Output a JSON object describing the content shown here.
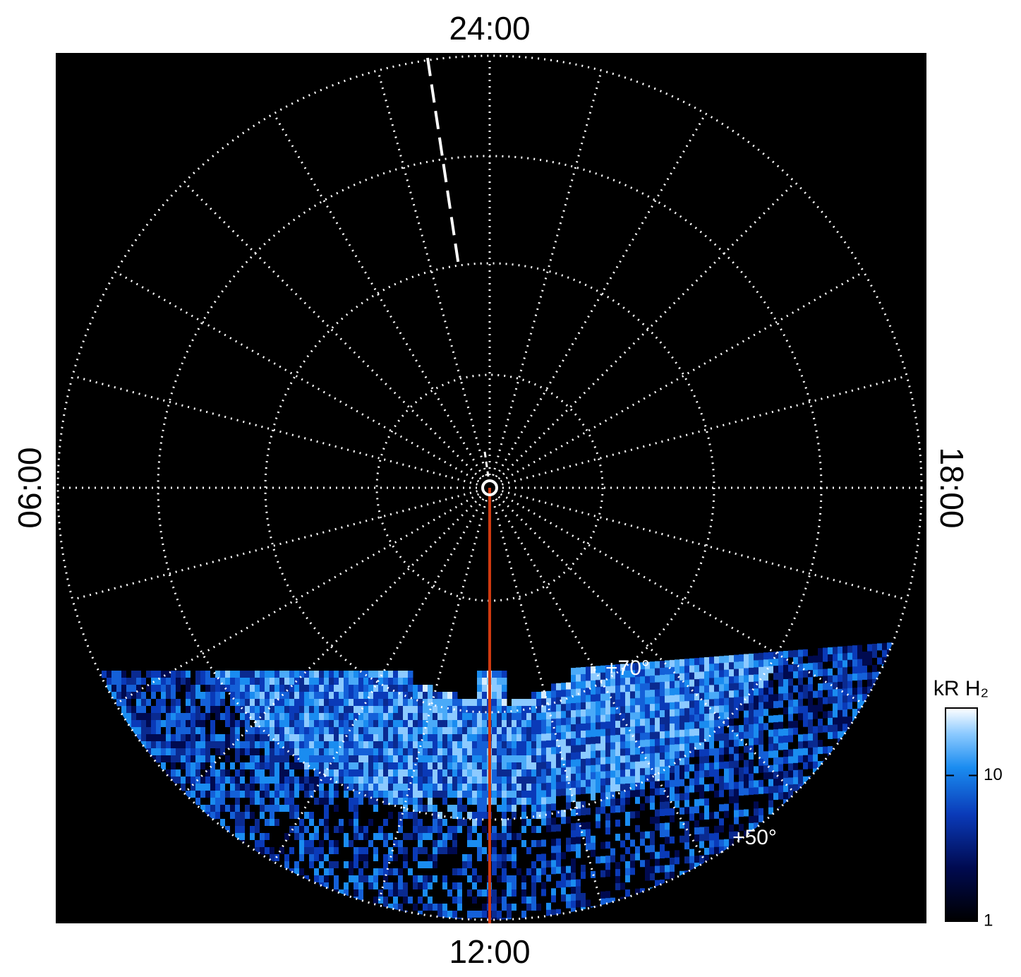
{
  "labels": {
    "top": "24:00",
    "bottom": "12:00",
    "left": "06:00",
    "right": "18:00"
  },
  "latitude_labels": [
    "+70°",
    "+50°"
  ],
  "colorbar": {
    "title": "kR H₂",
    "scale": "log",
    "lim": [
      1,
      29
    ],
    "ticks": [
      1,
      10
    ]
  }
}
